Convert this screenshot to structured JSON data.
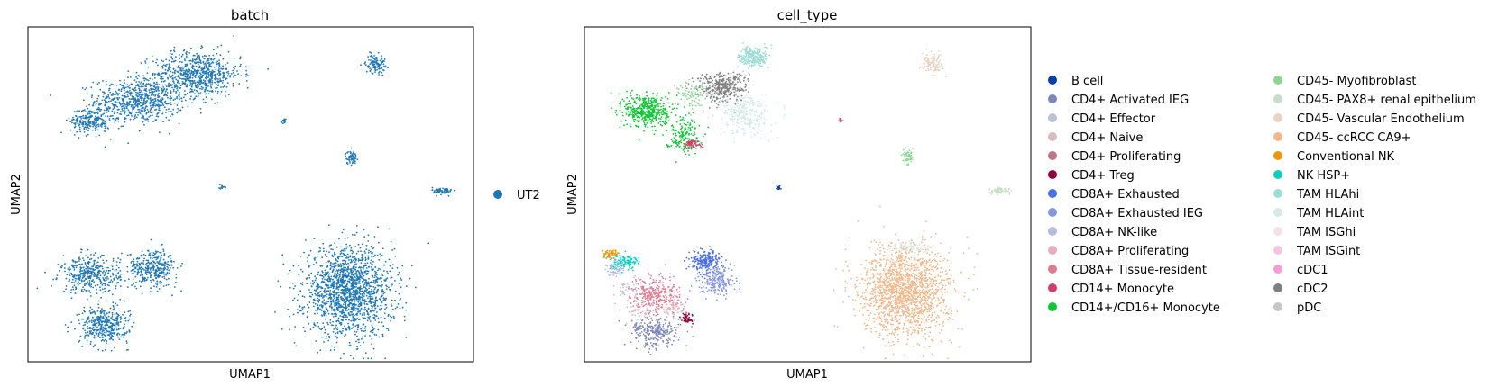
{
  "chart_data": [
    {
      "type": "scatter",
      "title": "batch",
      "xlabel": "UMAP1",
      "ylabel": "UMAP2",
      "ticks": "none",
      "legend_placement": "right",
      "legend": [
        {
          "name": "UT2",
          "color": "#1f77b4"
        }
      ],
      "clusters": [
        {
          "name": "UT2",
          "color": "#1f77b4",
          "center": [
            0.25,
            0.78
          ],
          "spread": [
            0.09,
            0.06
          ],
          "count": 700
        },
        {
          "name": "UT2",
          "color": "#1f77b4",
          "center": [
            0.38,
            0.86
          ],
          "spread": [
            0.09,
            0.06
          ],
          "count": 700
        },
        {
          "name": "UT2",
          "color": "#1f77b4",
          "center": [
            0.14,
            0.72
          ],
          "spread": [
            0.04,
            0.035
          ],
          "count": 250
        },
        {
          "name": "UT2",
          "color": "#1f77b4",
          "center": [
            0.78,
            0.89
          ],
          "spread": [
            0.02,
            0.025
          ],
          "count": 120
        },
        {
          "name": "UT2",
          "color": "#1f77b4",
          "center": [
            0.725,
            0.61
          ],
          "spread": [
            0.012,
            0.018
          ],
          "count": 60
        },
        {
          "name": "UT2",
          "color": "#1f77b4",
          "center": [
            0.93,
            0.51
          ],
          "spread": [
            0.02,
            0.01
          ],
          "count": 70
        },
        {
          "name": "UT2",
          "color": "#1f77b4",
          "center": [
            0.575,
            0.72
          ],
          "spread": [
            0.005,
            0.008
          ],
          "count": 15
        },
        {
          "name": "UT2",
          "color": "#1f77b4",
          "center": [
            0.435,
            0.52
          ],
          "spread": [
            0.006,
            0.006
          ],
          "count": 12
        },
        {
          "name": "UT2",
          "color": "#1f77b4",
          "center": [
            0.72,
            0.21
          ],
          "spread": [
            0.09,
            0.12
          ],
          "count": 1700
        },
        {
          "name": "UT2",
          "color": "#1f77b4",
          "center": [
            0.14,
            0.26
          ],
          "spread": [
            0.06,
            0.05
          ],
          "count": 400
        },
        {
          "name": "UT2",
          "color": "#1f77b4",
          "center": [
            0.28,
            0.28
          ],
          "spread": [
            0.05,
            0.05
          ],
          "count": 350
        },
        {
          "name": "UT2",
          "color": "#1f77b4",
          "center": [
            0.17,
            0.11
          ],
          "spread": [
            0.05,
            0.05
          ],
          "count": 400
        }
      ]
    },
    {
      "type": "scatter",
      "title": "cell_type",
      "xlabel": "UMAP1",
      "ylabel": "UMAP2",
      "ticks": "none",
      "legend_placement": "right",
      "legend": [
        {
          "name": "B cell",
          "color": "#023fa5"
        },
        {
          "name": "CD4+ Activated IEG",
          "color": "#7d87b9"
        },
        {
          "name": "CD4+ Effector",
          "color": "#bec1d4"
        },
        {
          "name": "CD4+ Naive",
          "color": "#d6bcc0"
        },
        {
          "name": "CD4+ Proliferating",
          "color": "#bb7784"
        },
        {
          "name": "CD4+ Treg",
          "color": "#8e063b"
        },
        {
          "name": "CD8A+ Exhausted",
          "color": "#4a6fe3"
        },
        {
          "name": "CD8A+ Exhausted IEG",
          "color": "#8595e1"
        },
        {
          "name": "CD8A+ NK-like",
          "color": "#b5bbe3"
        },
        {
          "name": "CD8A+ Proliferating",
          "color": "#e6afb9"
        },
        {
          "name": "CD8A+ Tissue-resident",
          "color": "#e07b91"
        },
        {
          "name": "CD14+ Monocyte",
          "color": "#d33f6a"
        },
        {
          "name": "CD14+/CD16+ Monocyte",
          "color": "#11c638"
        },
        {
          "name": "CD45- Myofibroblast",
          "color": "#8dd593"
        },
        {
          "name": "CD45- PAX8+ renal epithelium",
          "color": "#c6dec7"
        },
        {
          "name": "CD45- Vascular Endothelium",
          "color": "#ead3c6"
        },
        {
          "name": "CD45- ccRCC CA9+",
          "color": "#f0b98d"
        },
        {
          "name": "Conventional NK",
          "color": "#ef9708"
        },
        {
          "name": "NK HSP+",
          "color": "#0fcfc0"
        },
        {
          "name": "TAM HLAhi",
          "color": "#9cded6"
        },
        {
          "name": "TAM HLAint",
          "color": "#d5eae7"
        },
        {
          "name": "TAM ISGhi",
          "color": "#f3e1eb"
        },
        {
          "name": "TAM ISGint",
          "color": "#f6c4e1"
        },
        {
          "name": "cDC1",
          "color": "#f79cd4"
        },
        {
          "name": "cDC2",
          "color": "#7f7f7f"
        },
        {
          "name": "pDC",
          "color": "#c7c7c7"
        }
      ],
      "clusters": [
        {
          "name": "CD14+/CD16+ Monocyte",
          "color": "#11c638",
          "center": [
            0.14,
            0.75
          ],
          "spread": [
            0.045,
            0.045
          ],
          "count": 450
        },
        {
          "name": "CD14+/CD16+ Monocyte",
          "color": "#11c638",
          "center": [
            0.22,
            0.68
          ],
          "spread": [
            0.035,
            0.05
          ],
          "count": 180
        },
        {
          "name": "CD14+ Monocyte",
          "color": "#d33f6a",
          "center": [
            0.24,
            0.65
          ],
          "spread": [
            0.02,
            0.012
          ],
          "count": 60
        },
        {
          "name": "cDC2",
          "color": "#7f7f7f",
          "center": [
            0.31,
            0.82
          ],
          "spread": [
            0.05,
            0.04
          ],
          "count": 350
        },
        {
          "name": "TAM HLAhi",
          "color": "#9cded6",
          "center": [
            0.38,
            0.91
          ],
          "spread": [
            0.03,
            0.03
          ],
          "count": 250
        },
        {
          "name": "TAM HLAint",
          "color": "#d5eae7",
          "center": [
            0.36,
            0.74
          ],
          "spread": [
            0.05,
            0.06
          ],
          "count": 300
        },
        {
          "name": "CD45- Myofibroblast",
          "color": "#8dd593",
          "center": [
            0.24,
            0.8
          ],
          "spread": [
            0.03,
            0.04
          ],
          "count": 90
        },
        {
          "name": "CD45- Vascular Endothelium",
          "color": "#ead3c6",
          "center": [
            0.78,
            0.89
          ],
          "spread": [
            0.02,
            0.025
          ],
          "count": 120
        },
        {
          "name": "CD45- Myofibroblast",
          "color": "#8dd593",
          "center": [
            0.725,
            0.61
          ],
          "spread": [
            0.012,
            0.018
          ],
          "count": 60
        },
        {
          "name": "CD45- PAX8+ renal epithelium",
          "color": "#c6dec7",
          "center": [
            0.93,
            0.51
          ],
          "spread": [
            0.02,
            0.01
          ],
          "count": 70
        },
        {
          "name": "CD14+ Monocyte",
          "color": "#d33f6a",
          "center": [
            0.575,
            0.72
          ],
          "spread": [
            0.005,
            0.008
          ],
          "count": 10
        },
        {
          "name": "TAM ISGhi",
          "color": "#f3e1eb",
          "center": [
            0.575,
            0.72
          ],
          "spread": [
            0.005,
            0.008
          ],
          "count": 6
        },
        {
          "name": "B cell",
          "color": "#023fa5",
          "center": [
            0.435,
            0.52
          ],
          "spread": [
            0.006,
            0.006
          ],
          "count": 14
        },
        {
          "name": "CD45- ccRCC CA9+",
          "color": "#f0b98d",
          "center": [
            0.72,
            0.21
          ],
          "spread": [
            0.09,
            0.12
          ],
          "count": 1700
        },
        {
          "name": "TAM HLAint",
          "color": "#d5eae7",
          "center": [
            0.73,
            0.34
          ],
          "spread": [
            0.05,
            0.015
          ],
          "count": 60
        },
        {
          "name": "Conventional NK",
          "color": "#ef9708",
          "center": [
            0.06,
            0.32
          ],
          "spread": [
            0.015,
            0.012
          ],
          "count": 60
        },
        {
          "name": "NK HSP+",
          "color": "#0fcfc0",
          "center": [
            0.09,
            0.3
          ],
          "spread": [
            0.03,
            0.02
          ],
          "count": 120
        },
        {
          "name": "CD8A+ NK-like",
          "color": "#b5bbe3",
          "center": [
            0.07,
            0.28
          ],
          "spread": [
            0.02,
            0.02
          ],
          "count": 60
        },
        {
          "name": "CD8A+ Tissue-resident",
          "color": "#e07b91",
          "center": [
            0.16,
            0.2
          ],
          "spread": [
            0.05,
            0.05
          ],
          "count": 300
        },
        {
          "name": "CD8A+ Exhausted",
          "color": "#4a6fe3",
          "center": [
            0.27,
            0.3
          ],
          "spread": [
            0.03,
            0.03
          ],
          "count": 220
        },
        {
          "name": "CD8A+ Exhausted IEG",
          "color": "#8595e1",
          "center": [
            0.3,
            0.24
          ],
          "spread": [
            0.035,
            0.04
          ],
          "count": 200
        },
        {
          "name": "CD4+ Activated IEG",
          "color": "#7d87b9",
          "center": [
            0.16,
            0.09
          ],
          "spread": [
            0.05,
            0.04
          ],
          "count": 280
        },
        {
          "name": "CD4+ Treg",
          "color": "#8e063b",
          "center": [
            0.23,
            0.13
          ],
          "spread": [
            0.012,
            0.015
          ],
          "count": 50
        },
        {
          "name": "CD8A+ Proliferating",
          "color": "#e6afb9",
          "center": [
            0.2,
            0.16
          ],
          "spread": [
            0.02,
            0.02
          ],
          "count": 50
        },
        {
          "name": "CD4+ Naive",
          "color": "#d6bcc0",
          "center": [
            0.12,
            0.15
          ],
          "spread": [
            0.03,
            0.03
          ],
          "count": 40
        },
        {
          "name": "CD4+ Effector",
          "color": "#bec1d4",
          "center": [
            0.1,
            0.22
          ],
          "spread": [
            0.03,
            0.03
          ],
          "count": 40
        }
      ]
    }
  ]
}
